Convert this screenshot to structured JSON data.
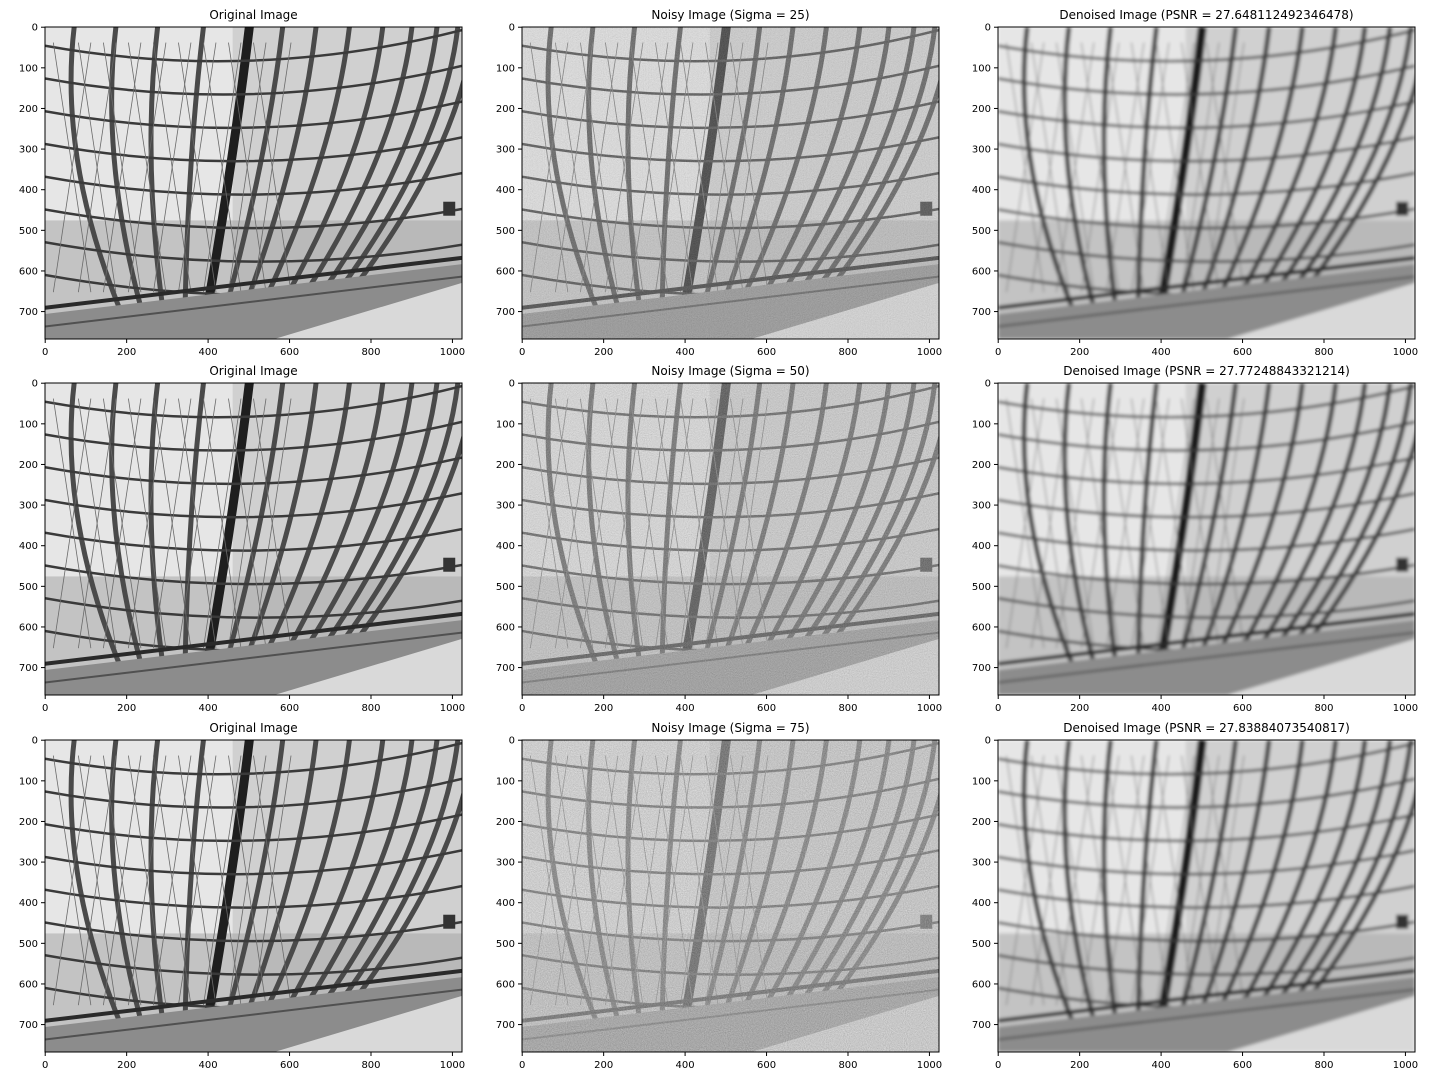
{
  "figure": {
    "x_ticks": [
      "0",
      "200",
      "400",
      "600",
      "800",
      "1000"
    ],
    "y_ticks": [
      "0",
      "100",
      "200",
      "300",
      "400",
      "500",
      "600",
      "700"
    ],
    "rows": [
      {
        "original_title": "Original Image",
        "noisy_title": "Noisy Image (Sigma = 25)",
        "denoised_title": "Denoised Image (PSNR = 27.648112492346478)"
      },
      {
        "original_title": "Original Image",
        "noisy_title": "Noisy Image (Sigma = 50)",
        "denoised_title": "Denoised Image (PSNR = 27.77248843321214)"
      },
      {
        "original_title": "Original Image",
        "noisy_title": "Noisy Image (Sigma = 75)",
        "denoised_title": "Denoised Image (PSNR = 27.83884073540817)"
      }
    ]
  },
  "colors": {
    "text": "#000000",
    "axis": "#000000",
    "image_light": "#e6e6e6",
    "image_dark": "#2a2a2a"
  }
}
